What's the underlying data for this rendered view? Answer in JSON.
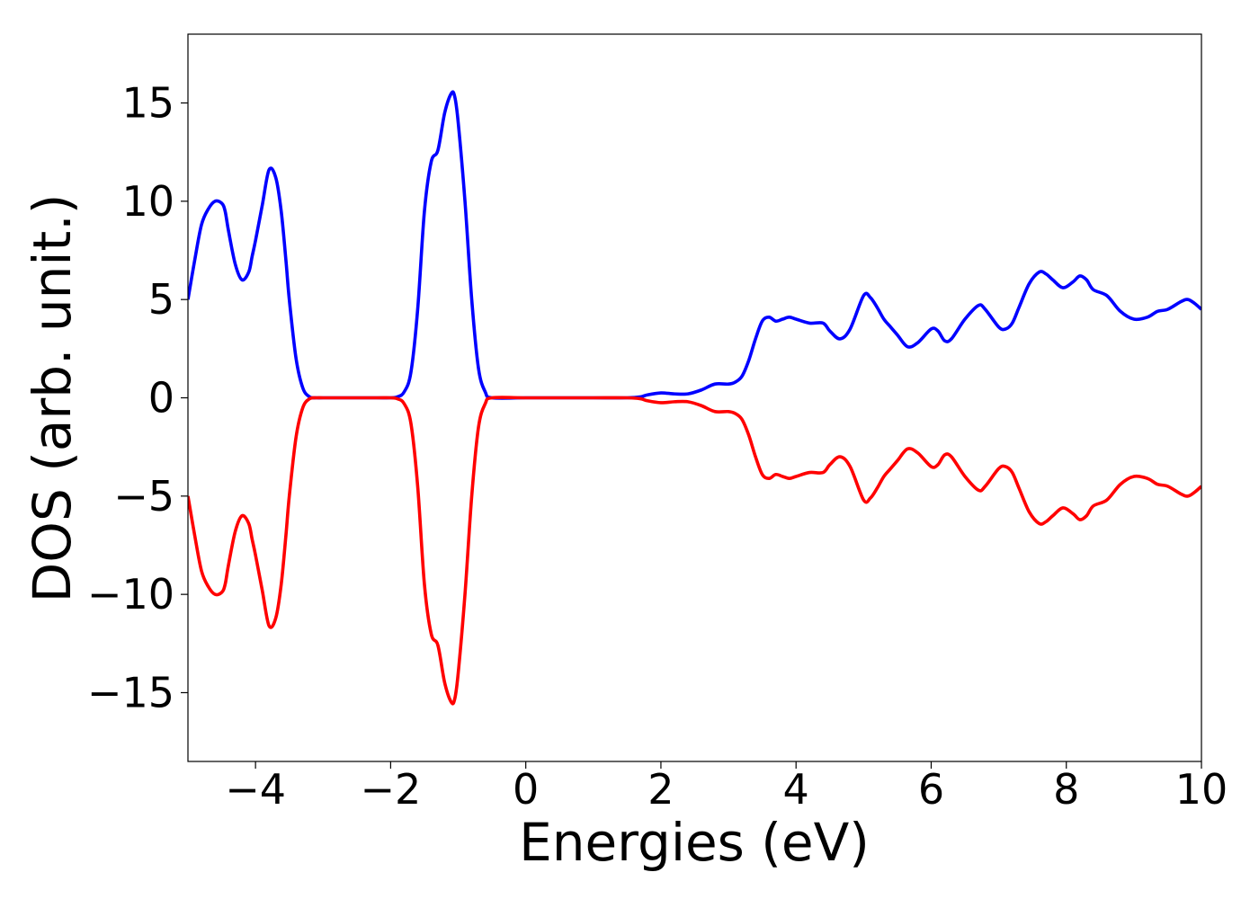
{
  "chart_data": {
    "type": "line",
    "title": "",
    "xlabel": "Energies (eV)",
    "ylabel": "DOS (arb. unit.)",
    "xlim": [
      -5,
      10
    ],
    "ylim": [
      -18.5,
      18.5
    ],
    "grid": false,
    "legend": "none",
    "xticks": [
      -4,
      -2,
      0,
      2,
      4,
      6,
      8,
      10
    ],
    "xtick_labels": [
      "−4",
      "−2",
      "0",
      "2",
      "4",
      "6",
      "8",
      "10"
    ],
    "yticks": [
      15,
      10,
      5,
      0,
      -5,
      -10,
      -15
    ],
    "ytick_labels": [
      "15",
      "10",
      "5",
      "0",
      "−5",
      "−10",
      "−15"
    ],
    "series": [
      {
        "color": "#0000ff",
        "x": [
          -5.0,
          -4.9,
          -4.8,
          -4.7,
          -4.6,
          -4.5,
          -4.45,
          -4.4,
          -4.3,
          -4.2,
          -4.1,
          -4.05,
          -4.0,
          -3.9,
          -3.8,
          -3.7,
          -3.62,
          -3.55,
          -3.5,
          -3.4,
          -3.3,
          -3.2,
          -3.1,
          -3.0,
          -2.8,
          -2.5,
          -2.2,
          -2.0,
          -1.9,
          -1.8,
          -1.7,
          -1.6,
          -1.5,
          -1.4,
          -1.3,
          -1.2,
          -1.1,
          -1.05,
          -1.0,
          -0.9,
          -0.8,
          -0.7,
          -0.6,
          -0.5,
          0.0,
          0.5,
          1.0,
          1.5,
          1.7,
          1.8,
          2.0,
          2.2,
          2.4,
          2.6,
          2.8,
          3.0,
          3.1,
          3.2,
          3.3,
          3.4,
          3.5,
          3.6,
          3.7,
          3.8,
          3.9,
          4.0,
          4.2,
          4.4,
          4.5,
          4.65,
          4.8,
          5.0,
          5.1,
          5.2,
          5.3,
          5.4,
          5.5,
          5.65,
          5.8,
          6.0,
          6.1,
          6.2,
          6.3,
          6.5,
          6.7,
          6.8,
          7.0,
          7.1,
          7.2,
          7.3,
          7.45,
          7.6,
          7.7,
          7.8,
          7.95,
          8.1,
          8.2,
          8.3,
          8.4,
          8.6,
          8.8,
          9.0,
          9.2,
          9.35,
          9.5,
          9.7,
          9.8,
          9.9,
          10.0
        ],
        "y": [
          5.0,
          7.0,
          8.8,
          9.6,
          10.0,
          9.9,
          9.5,
          8.5,
          6.8,
          6.0,
          6.4,
          7.2,
          8.0,
          9.8,
          11.6,
          11.2,
          9.5,
          7.0,
          5.0,
          2.0,
          0.5,
          0.05,
          0.0,
          0.0,
          0.0,
          0.0,
          0.0,
          0.0,
          0.05,
          0.3,
          1.3,
          4.5,
          9.5,
          12.0,
          12.6,
          14.5,
          15.5,
          15.3,
          14.0,
          10.0,
          5.0,
          1.5,
          0.3,
          0.0,
          0.0,
          0.0,
          0.0,
          0.0,
          0.05,
          0.15,
          0.25,
          0.2,
          0.2,
          0.4,
          0.7,
          0.7,
          0.8,
          1.1,
          1.9,
          3.0,
          3.9,
          4.1,
          3.9,
          4.0,
          4.1,
          4.0,
          3.8,
          3.8,
          3.4,
          3.0,
          3.5,
          5.2,
          5.1,
          4.6,
          4.0,
          3.6,
          3.2,
          2.6,
          2.8,
          3.5,
          3.4,
          2.9,
          3.0,
          4.0,
          4.7,
          4.5,
          3.6,
          3.5,
          3.8,
          4.6,
          5.8,
          6.4,
          6.3,
          6.0,
          5.6,
          5.9,
          6.2,
          6.0,
          5.5,
          5.2,
          4.4,
          4.0,
          4.1,
          4.4,
          4.5,
          4.9,
          5.0,
          4.8,
          4.5
        ]
      },
      {
        "color": "#ff0000",
        "x": [
          -5.0,
          -4.9,
          -4.8,
          -4.7,
          -4.6,
          -4.5,
          -4.45,
          -4.4,
          -4.3,
          -4.2,
          -4.1,
          -4.05,
          -4.0,
          -3.9,
          -3.8,
          -3.7,
          -3.62,
          -3.55,
          -3.5,
          -3.4,
          -3.3,
          -3.2,
          -3.1,
          -3.0,
          -2.8,
          -2.5,
          -2.2,
          -2.0,
          -1.9,
          -1.8,
          -1.7,
          -1.6,
          -1.5,
          -1.4,
          -1.3,
          -1.2,
          -1.1,
          -1.05,
          -1.0,
          -0.9,
          -0.8,
          -0.7,
          -0.6,
          -0.5,
          0.0,
          0.5,
          1.0,
          1.5,
          1.7,
          1.8,
          2.0,
          2.2,
          2.4,
          2.6,
          2.8,
          3.0,
          3.1,
          3.2,
          3.3,
          3.4,
          3.5,
          3.6,
          3.7,
          3.8,
          3.9,
          4.0,
          4.2,
          4.4,
          4.5,
          4.65,
          4.8,
          5.0,
          5.1,
          5.2,
          5.3,
          5.4,
          5.5,
          5.65,
          5.8,
          6.0,
          6.1,
          6.2,
          6.3,
          6.5,
          6.7,
          6.8,
          7.0,
          7.1,
          7.2,
          7.3,
          7.45,
          7.6,
          7.7,
          7.8,
          7.95,
          8.1,
          8.2,
          8.3,
          8.4,
          8.6,
          8.8,
          9.0,
          9.2,
          9.35,
          9.5,
          9.7,
          9.8,
          9.9,
          10.0
        ],
        "y": [
          -5.0,
          -7.0,
          -8.8,
          -9.6,
          -10.0,
          -9.9,
          -9.5,
          -8.5,
          -6.8,
          -6.0,
          -6.4,
          -7.2,
          -8.0,
          -9.8,
          -11.6,
          -11.2,
          -9.5,
          -7.0,
          -5.0,
          -2.0,
          -0.5,
          -0.05,
          0.0,
          0.0,
          0.0,
          0.0,
          0.0,
          0.0,
          -0.05,
          -0.3,
          -1.3,
          -4.5,
          -9.5,
          -12.0,
          -12.6,
          -14.5,
          -15.5,
          -15.3,
          -14.0,
          -10.0,
          -5.0,
          -1.5,
          -0.3,
          0.0,
          0.0,
          0.0,
          0.0,
          0.0,
          -0.05,
          -0.15,
          -0.25,
          -0.2,
          -0.2,
          -0.4,
          -0.7,
          -0.7,
          -0.8,
          -1.1,
          -1.9,
          -3.0,
          -3.9,
          -4.1,
          -3.9,
          -4.0,
          -4.1,
          -4.0,
          -3.8,
          -3.8,
          -3.4,
          -3.0,
          -3.5,
          -5.2,
          -5.1,
          -4.6,
          -4.0,
          -3.6,
          -3.2,
          -2.6,
          -2.8,
          -3.5,
          -3.4,
          -2.9,
          -3.0,
          -4.0,
          -4.7,
          -4.5,
          -3.6,
          -3.5,
          -3.8,
          -4.6,
          -5.8,
          -6.4,
          -6.3,
          -6.0,
          -5.6,
          -5.9,
          -6.2,
          -6.0,
          -5.5,
          -5.2,
          -4.4,
          -4.0,
          -4.1,
          -4.4,
          -4.5,
          -4.9,
          -5.0,
          -4.8,
          -4.5
        ]
      }
    ]
  }
}
